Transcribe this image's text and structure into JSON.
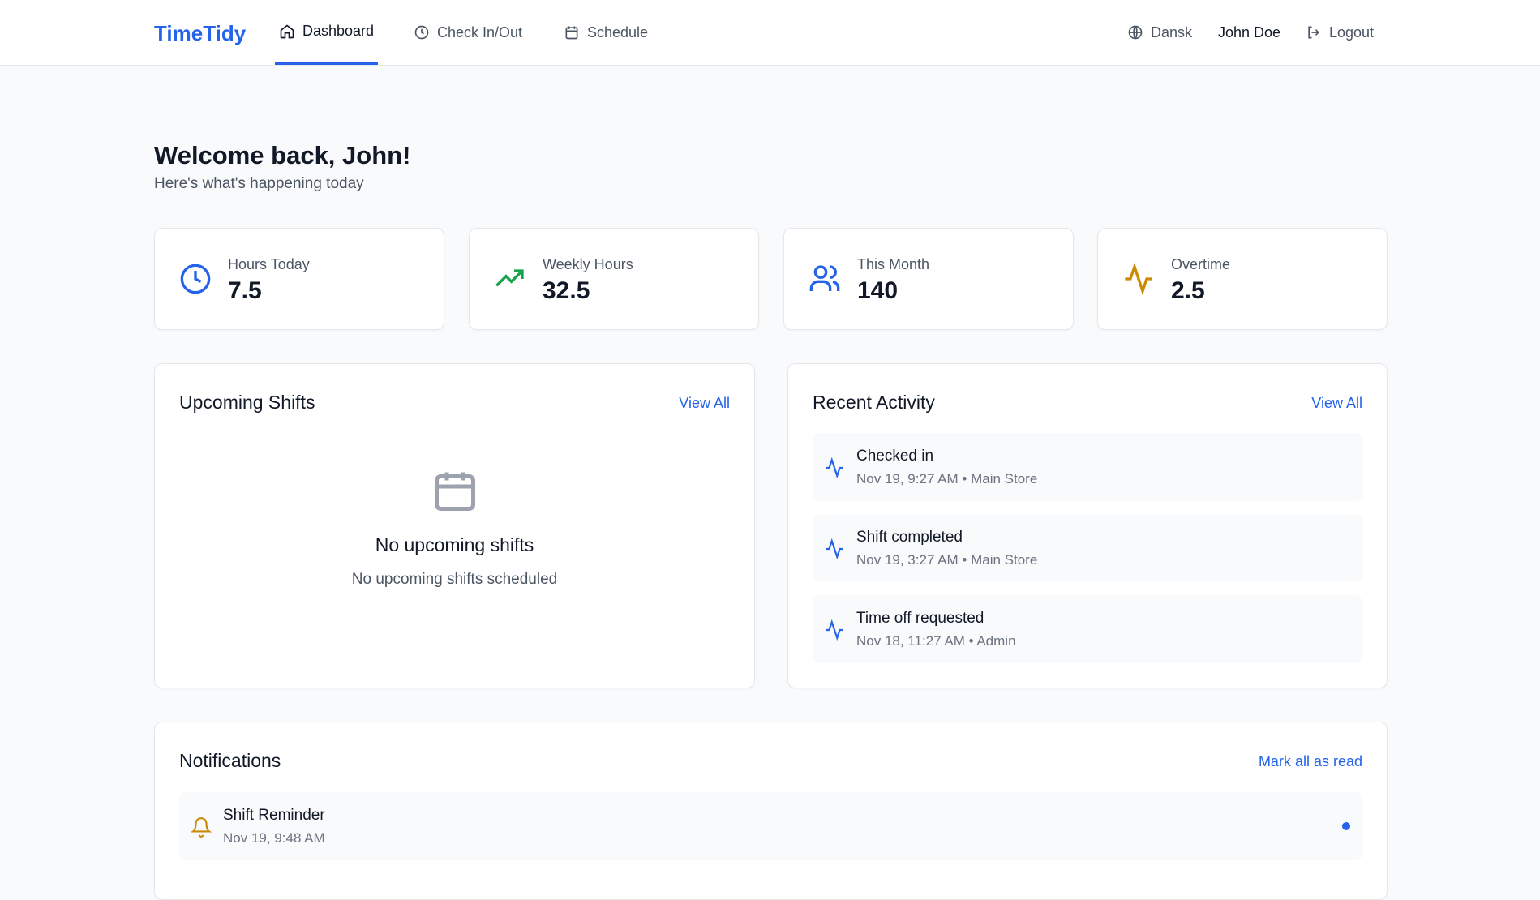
{
  "header": {
    "logo": "TimeTidy",
    "nav": [
      "Dashboard",
      "Check In/Out",
      "Schedule"
    ],
    "language": "Dansk",
    "user": "John Doe",
    "logout": "Logout"
  },
  "welcome": {
    "title": "Welcome back, John!",
    "subtitle": "Here's what's happening today"
  },
  "stats": [
    {
      "label": "Hours Today",
      "value": 7.5
    },
    {
      "label": "Weekly Hours",
      "value": 32.5
    },
    {
      "label": "This Month",
      "value": 140
    },
    {
      "label": "Overtime",
      "value": 2.5
    }
  ],
  "upcoming_shifts": {
    "title": "Upcoming Shifts",
    "action": "View All",
    "empty_title": "No upcoming shifts",
    "empty_text": "No upcoming shifts scheduled"
  },
  "recent_activity": {
    "title": "Recent Activity",
    "action": "View All",
    "items": [
      {
        "title": "Checked in",
        "detail": "Nov 19, 9:27 AM • Main Store"
      },
      {
        "title": "Shift completed",
        "detail": "Nov 19, 3:27 AM • Main Store"
      },
      {
        "title": "Time off requested",
        "detail": "Nov 18, 11:27 AM • Admin"
      }
    ]
  },
  "notifications": {
    "title": "Notifications",
    "action": "Mark all as read",
    "items": [
      {
        "title": "Shift Reminder",
        "detail": "Nov 19, 9:48 AM"
      }
    ]
  }
}
